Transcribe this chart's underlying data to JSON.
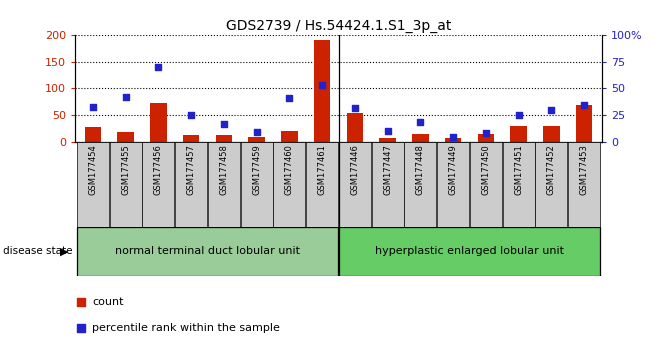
{
  "title": "GDS2739 / Hs.54424.1.S1_3p_at",
  "samples": [
    "GSM177454",
    "GSM177455",
    "GSM177456",
    "GSM177457",
    "GSM177458",
    "GSM177459",
    "GSM177460",
    "GSM177461",
    "GSM177446",
    "GSM177447",
    "GSM177448",
    "GSM177449",
    "GSM177450",
    "GSM177451",
    "GSM177452",
    "GSM177453"
  ],
  "counts": [
    27,
    19,
    73,
    12,
    12,
    9,
    20,
    191,
    54,
    7,
    15,
    7,
    15,
    30,
    30,
    68
  ],
  "percentiles": [
    33,
    42,
    70,
    25,
    17,
    9,
    41,
    53,
    32,
    10,
    18,
    4,
    8,
    25,
    30,
    34
  ],
  "group1_label": "normal terminal duct lobular unit",
  "group2_label": "hyperplastic enlarged lobular unit",
  "group1_indices": [
    0,
    1,
    2,
    3,
    4,
    5,
    6,
    7
  ],
  "group2_indices": [
    8,
    9,
    10,
    11,
    12,
    13,
    14,
    15
  ],
  "ylim_left": [
    0,
    200
  ],
  "ylim_right": [
    0,
    100
  ],
  "yticks_left": [
    0,
    50,
    100,
    150,
    200
  ],
  "yticks_right": [
    0,
    25,
    50,
    75,
    100
  ],
  "ytick_labels_left": [
    "0",
    "50",
    "100",
    "150",
    "200"
  ],
  "ytick_labels_right": [
    "0",
    "25",
    "50",
    "75",
    "100%"
  ],
  "bar_color": "#cc2200",
  "dot_color": "#2222cc",
  "bg_color": "#ffffff",
  "tick_bg": "#cccccc",
  "group1_color": "#99cc99",
  "group2_color": "#66cc66",
  "legend_count_label": "count",
  "legend_pct_label": "percentile rank within the sample",
  "disease_state_label": "disease state",
  "bar_width": 0.5,
  "dot_size": 25
}
